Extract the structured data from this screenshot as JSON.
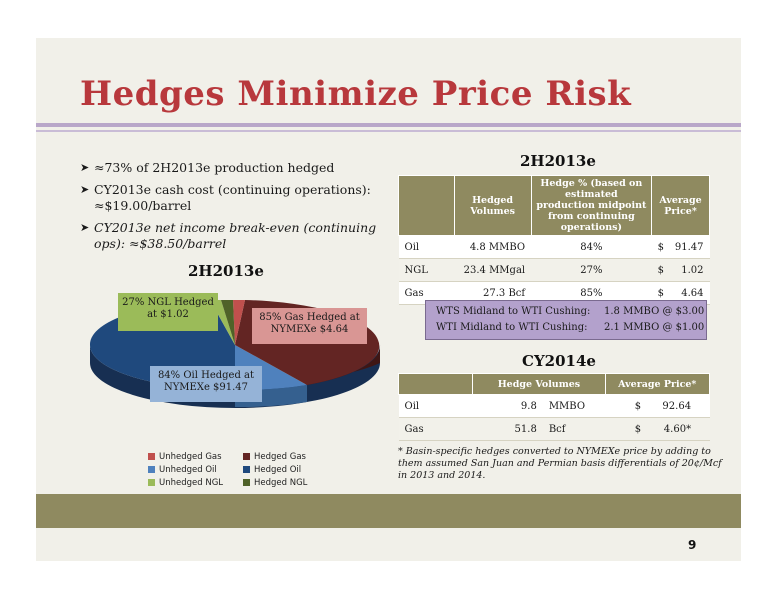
{
  "title": "Hedges Minimize Price Risk",
  "bullets": [
    {
      "text": "≈73% of 2H2013e production hedged"
    },
    {
      "text": "CY2013e cash cost (continuing operations): ≈$19.00/barrel"
    },
    {
      "text": "CY2013e net income break-even (continuing ops): ≈$38.50/barrel"
    }
  ],
  "pie": {
    "title": "2H2013e",
    "labels": {
      "ngl": "27% NGL Hedged at $1.02",
      "gas": "85% Gas Hedged at NYMEXe $4.64",
      "oil": "84% Oil Hedged  at NYMEXe $91.47"
    },
    "legend": [
      "Unhedged Gas",
      "Hedged Gas",
      "Unhedged Oil",
      "Hedged Oil",
      "Unhedged NGL",
      "Hedged NGL"
    ],
    "colors": {
      "unhedged_gas": "#c0504d",
      "hedged_gas": "#632523",
      "unhedged_oil": "#4f81bd",
      "hedged_oil": "#1f497d",
      "unhedged_ngl": "#9bbb59",
      "hedged_ngl": "#4f6228"
    }
  },
  "table_2h2013": {
    "title": "2H2013e",
    "headers": [
      "",
      "Hedged Volumes",
      "Hedge % (based on estimated production midpoint from continuing operations)",
      "Average Price*"
    ],
    "rows": [
      {
        "name": "Oil",
        "volume": "4.8 MMBO",
        "pct": "84%",
        "cur": "$",
        "price": "91.47"
      },
      {
        "name": "NGL",
        "volume": "23.4 MMgal",
        "pct": "27%",
        "cur": "$",
        "price": "1.02"
      },
      {
        "name": "Gas",
        "volume": "27.3 Bcf",
        "pct": "85%",
        "cur": "$",
        "price": "4.64"
      }
    ]
  },
  "wti": [
    {
      "label": "WTS Midland to WTI Cushing:",
      "value": "1.8 MMBO @ $3.00"
    },
    {
      "label": "WTI Midland to WTI Cushing:",
      "value": "2.1 MMBO @ $1.00"
    }
  ],
  "table_cy2014": {
    "title": "CY2014e",
    "headers": [
      "",
      "Hedge Volumes",
      "Average Price*"
    ],
    "rows": [
      {
        "name": "Oil",
        "num": "9.8",
        "unit": "MMBO",
        "cur": "$",
        "price": "92.64"
      },
      {
        "name": "Gas",
        "num": "51.8",
        "unit": "Bcf",
        "cur": "$",
        "price": "4.60*"
      }
    ]
  },
  "footnote": "*  Basin-specific hedges converted to NYMEXe price by adding to them assumed San Juan and Permian basis differentials of 20¢/Mcf in 2013 and 2014.",
  "page_number": "9"
}
